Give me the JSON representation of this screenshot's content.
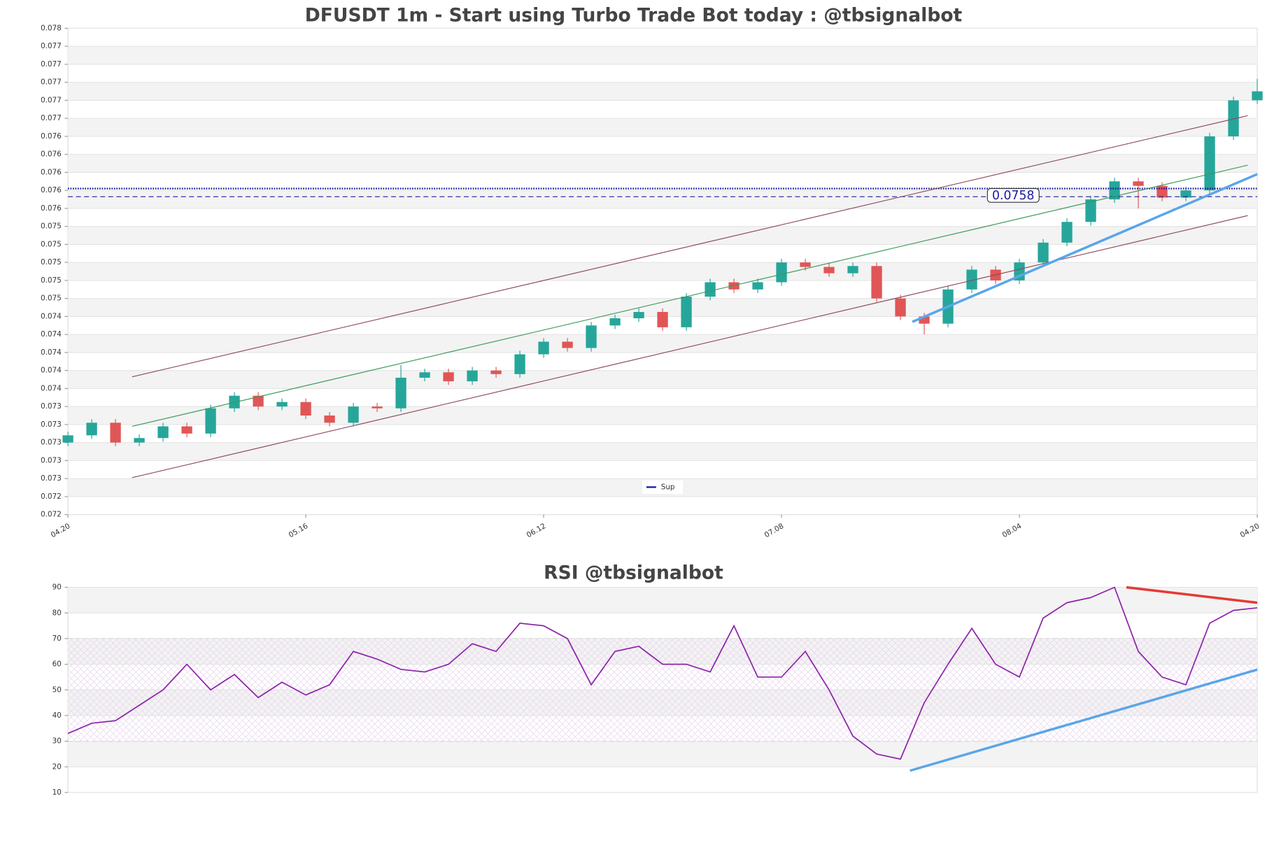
{
  "chart_data": [
    {
      "type": "candlestick",
      "title": "DFUSDT 1m - Start using Turbo Trade Bot today : @tbsignalbot",
      "up_color": "#26a69a",
      "down_color": "#e05656",
      "xlim": [
        0,
        50
      ],
      "xticks": [
        {
          "value": 0,
          "label": "04.20"
        },
        {
          "value": 10,
          "label": "05.16"
        },
        {
          "value": 20,
          "label": "06.12"
        },
        {
          "value": 30,
          "label": "07.08"
        },
        {
          "value": 40,
          "label": "08.04"
        },
        {
          "value": 50,
          "label": "04.20"
        }
      ],
      "ylim": [
        0.0722,
        0.0776
      ],
      "yticks": [
        {
          "value": 0.0722,
          "label": "0.072"
        },
        {
          "value": 0.0724,
          "label": "0.072"
        },
        {
          "value": 0.0726,
          "label": "0.073"
        },
        {
          "value": 0.0728,
          "label": "0.073"
        },
        {
          "value": 0.073,
          "label": "0.073"
        },
        {
          "value": 0.0732,
          "label": "0.073"
        },
        {
          "value": 0.0734,
          "label": "0.073"
        },
        {
          "value": 0.0736,
          "label": "0.074"
        },
        {
          "value": 0.0738,
          "label": "0.074"
        },
        {
          "value": 0.074,
          "label": "0.074"
        },
        {
          "value": 0.0742,
          "label": "0.074"
        },
        {
          "value": 0.0744,
          "label": "0.074"
        },
        {
          "value": 0.0746,
          "label": "0.075"
        },
        {
          "value": 0.0748,
          "label": "0.075"
        },
        {
          "value": 0.075,
          "label": "0.075"
        },
        {
          "value": 0.0752,
          "label": "0.075"
        },
        {
          "value": 0.0754,
          "label": "0.075"
        },
        {
          "value": 0.0756,
          "label": "0.076"
        },
        {
          "value": 0.0758,
          "label": "0.076"
        },
        {
          "value": 0.076,
          "label": "0.076"
        },
        {
          "value": 0.0762,
          "label": "0.076"
        },
        {
          "value": 0.0764,
          "label": "0.076"
        },
        {
          "value": 0.0766,
          "label": "0.077"
        },
        {
          "value": 0.0768,
          "label": "0.077"
        },
        {
          "value": 0.077,
          "label": "0.077"
        },
        {
          "value": 0.0772,
          "label": "0.077"
        },
        {
          "value": 0.0774,
          "label": "0.077"
        },
        {
          "value": 0.0776,
          "label": "0.078"
        }
      ],
      "grid": true,
      "open": [
        0.073,
        0.07308,
        0.07322,
        0.073,
        0.07305,
        0.07318,
        0.0731,
        0.07338,
        0.07352,
        0.0734,
        0.07345,
        0.0733,
        0.07322,
        0.0734,
        0.07338,
        0.07372,
        0.07378,
        0.07368,
        0.0738,
        0.07376,
        0.07398,
        0.07412,
        0.07405,
        0.0743,
        0.07438,
        0.07445,
        0.07428,
        0.07462,
        0.07478,
        0.0747,
        0.07478,
        0.075,
        0.07495,
        0.07488,
        0.07496,
        0.0746,
        0.0744,
        0.07432,
        0.0747,
        0.07492,
        0.0748,
        0.075,
        0.07522,
        0.07545,
        0.0757,
        0.0759,
        0.07585,
        0.07572,
        0.0758,
        0.0764,
        0.0768
      ],
      "high": [
        0.07312,
        0.07326,
        0.07326,
        0.07309,
        0.07322,
        0.07322,
        0.07342,
        0.07356,
        0.07356,
        0.07349,
        0.07349,
        0.07334,
        0.07344,
        0.07344,
        0.07386,
        0.07382,
        0.07382,
        0.07384,
        0.07384,
        0.07402,
        0.07416,
        0.07416,
        0.07434,
        0.07442,
        0.07449,
        0.07449,
        0.07466,
        0.07482,
        0.07482,
        0.07482,
        0.07504,
        0.07504,
        0.07499,
        0.075,
        0.075,
        0.07464,
        0.07444,
        0.07474,
        0.07496,
        0.07496,
        0.07504,
        0.07526,
        0.07549,
        0.07574,
        0.07594,
        0.07594,
        0.07589,
        0.07584,
        0.07644,
        0.07684,
        0.07704
      ],
      "low": [
        0.07296,
        0.07304,
        0.07296,
        0.07296,
        0.07301,
        0.07306,
        0.07306,
        0.07334,
        0.07336,
        0.07336,
        0.07326,
        0.07318,
        0.07318,
        0.07334,
        0.07334,
        0.07368,
        0.07364,
        0.07364,
        0.07372,
        0.07372,
        0.07394,
        0.07401,
        0.07401,
        0.07426,
        0.07434,
        0.07424,
        0.07424,
        0.07458,
        0.07466,
        0.07466,
        0.07474,
        0.07491,
        0.07484,
        0.07484,
        0.07456,
        0.07436,
        0.0742,
        0.07428,
        0.07466,
        0.07476,
        0.07476,
        0.07496,
        0.07518,
        0.07541,
        0.07566,
        0.0756,
        0.07568,
        0.07568,
        0.07576,
        0.07636,
        0.07676
      ],
      "close": [
        0.07308,
        0.07322,
        0.073,
        0.07305,
        0.07318,
        0.0731,
        0.07338,
        0.07352,
        0.0734,
        0.07345,
        0.0733,
        0.07322,
        0.0734,
        0.07338,
        0.07372,
        0.07378,
        0.07368,
        0.0738,
        0.07376,
        0.07398,
        0.07412,
        0.07405,
        0.0743,
        0.07438,
        0.07445,
        0.07428,
        0.07462,
        0.07478,
        0.0747,
        0.07478,
        0.075,
        0.07495,
        0.07488,
        0.07496,
        0.0746,
        0.0744,
        0.07432,
        0.0747,
        0.07492,
        0.0748,
        0.075,
        0.07522,
        0.07545,
        0.0757,
        0.0759,
        0.07585,
        0.07572,
        0.0758,
        0.0764,
        0.0768,
        0.0769
      ],
      "trend_lines": [
        {
          "color": "#8b4a5c",
          "width": 1,
          "x": [
            2.7,
            49.6
          ],
          "values": [
            0.07373,
            0.07663
          ]
        },
        {
          "color": "#8b4a5c",
          "width": 1,
          "x": [
            2.7,
            49.6
          ],
          "values": [
            0.07261,
            0.07552
          ]
        },
        {
          "color": "#3a9a5a",
          "width": 1,
          "x": [
            2.7,
            49.6
          ],
          "values": [
            0.07318,
            0.07608
          ]
        },
        {
          "color": "#5aa5e8",
          "width": 3,
          "x": [
            35.5,
            50
          ],
          "values": [
            0.07434,
            0.07598
          ]
        }
      ],
      "levels": [
        {
          "name": "Sup",
          "value": 0.07573,
          "color": "#1a1aa0",
          "style": "dashed"
        }
      ],
      "price_label": {
        "value": 0.07582,
        "label": "0.0758",
        "color": "#1a1aa0"
      },
      "legend": "lower center"
    },
    {
      "type": "line",
      "title": "RSI @tbsignalbot",
      "xlim": [
        0,
        50
      ],
      "ylim": [
        10,
        90
      ],
      "yticks": [
        10,
        20,
        30,
        40,
        50,
        60,
        70,
        80,
        90
      ],
      "grid": true,
      "bounds": [
        30,
        70
      ],
      "series": [
        {
          "color": "#8e24aa",
          "values": [
            33,
            37,
            38,
            44,
            50,
            60,
            50,
            56,
            47,
            53,
            48,
            52,
            65,
            62,
            58,
            57,
            60,
            68,
            65,
            76,
            75,
            70,
            52,
            65,
            67,
            60,
            60,
            57,
            75,
            55,
            55,
            65,
            50,
            32,
            25,
            23,
            45,
            60,
            74,
            60,
            55,
            78,
            84,
            86,
            90,
            65,
            55,
            52,
            76,
            81,
            82
          ]
        }
      ],
      "trend_lines": [
        {
          "color": "#5aa5e8",
          "width": 3,
          "x": [
            35.4,
            50
          ],
          "values": [
            18.5,
            57.9
          ]
        },
        {
          "color": "#e53935",
          "width": 3,
          "x": [
            44.5,
            50
          ],
          "values": [
            90,
            84
          ]
        }
      ]
    }
  ]
}
